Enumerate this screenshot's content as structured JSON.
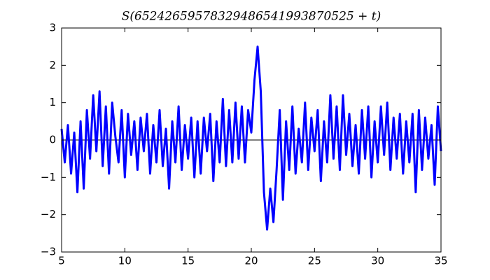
{
  "chart_data": {
    "type": "line",
    "title": "S(65242659578329486541993870525 + t)",
    "x": [
      5,
      5.25,
      5.5,
      5.75,
      6,
      6.25,
      6.5,
      6.75,
      7,
      7.25,
      7.5,
      7.75,
      8,
      8.25,
      8.5,
      8.75,
      9,
      9.25,
      9.5,
      9.75,
      10,
      10.25,
      10.5,
      10.75,
      11,
      11.25,
      11.5,
      11.75,
      12,
      12.25,
      12.5,
      12.75,
      13,
      13.25,
      13.5,
      13.75,
      14,
      14.25,
      14.5,
      14.75,
      15,
      15.25,
      15.5,
      15.75,
      16,
      16.25,
      16.5,
      16.75,
      17,
      17.25,
      17.5,
      17.75,
      18,
      18.25,
      18.5,
      18.75,
      19,
      19.25,
      19.5,
      19.75,
      20,
      20.25,
      20.5,
      20.75,
      21,
      21.25,
      21.5,
      21.75,
      22,
      22.25,
      22.5,
      22.75,
      23,
      23.25,
      23.5,
      23.75,
      24,
      24.25,
      24.5,
      24.75,
      25,
      25.25,
      25.5,
      25.75,
      26,
      26.25,
      26.5,
      26.75,
      27,
      27.25,
      27.5,
      27.75,
      28,
      28.25,
      28.5,
      28.75,
      29,
      29.25,
      29.5,
      29.75,
      30,
      30.25,
      30.5,
      30.75,
      31,
      31.25,
      31.5,
      31.75,
      32,
      32.25,
      32.5,
      32.75,
      33,
      33.25,
      33.5,
      33.75,
      34,
      34.25,
      34.5,
      34.75,
      35
    ],
    "series": [
      {
        "color": "#0000ff",
        "values": [
          0.3,
          -0.6,
          0.4,
          -0.9,
          0.2,
          -1.4,
          0.5,
          -1.3,
          0.8,
          -0.5,
          1.2,
          -0.3,
          1.3,
          -0.7,
          0.9,
          -0.9,
          1.0,
          0.1,
          -0.6,
          0.8,
          -1.0,
          0.7,
          -0.4,
          0.5,
          -0.8,
          0.6,
          -0.3,
          0.7,
          -0.9,
          0.4,
          -0.6,
          0.8,
          -0.7,
          0.3,
          -1.3,
          0.5,
          -0.6,
          0.9,
          -0.8,
          0.4,
          -0.5,
          0.6,
          -1.0,
          0.5,
          -0.9,
          0.6,
          -0.3,
          0.7,
          -1.1,
          0.5,
          -0.6,
          1.1,
          -0.7,
          0.8,
          -0.6,
          1.0,
          -0.5,
          0.9,
          -0.6,
          0.8,
          0.2,
          1.6,
          2.5,
          1.3,
          -1.4,
          -2.4,
          -1.3,
          -2.2,
          -0.8,
          0.8,
          -1.6,
          0.5,
          -0.8,
          0.9,
          -0.9,
          0.3,
          -0.6,
          1.0,
          -0.8,
          0.6,
          -0.3,
          0.8,
          -1.1,
          0.5,
          -0.6,
          1.2,
          -0.5,
          0.9,
          -0.8,
          1.2,
          -0.4,
          0.7,
          -0.7,
          0.4,
          -0.9,
          0.8,
          -0.5,
          0.9,
          -1.0,
          0.5,
          -0.6,
          0.9,
          -0.4,
          1.0,
          -0.8,
          0.6,
          -0.5,
          0.7,
          -0.9,
          0.5,
          -0.6,
          0.7,
          -1.4,
          0.8,
          -0.8,
          0.6,
          -0.5,
          0.4,
          -1.2,
          0.9,
          -0.3
        ]
      }
    ],
    "reference_line": 0,
    "xlim": [
      5,
      35
    ],
    "xticks": [
      5,
      10,
      15,
      20,
      25,
      30,
      35
    ],
    "ylim": [
      -3,
      3
    ],
    "yticks": [
      {
        "value": -3,
        "label": "−3"
      },
      {
        "value": -2,
        "label": "−2"
      },
      {
        "value": -1,
        "label": "−1"
      },
      0,
      1,
      2,
      3
    ]
  }
}
